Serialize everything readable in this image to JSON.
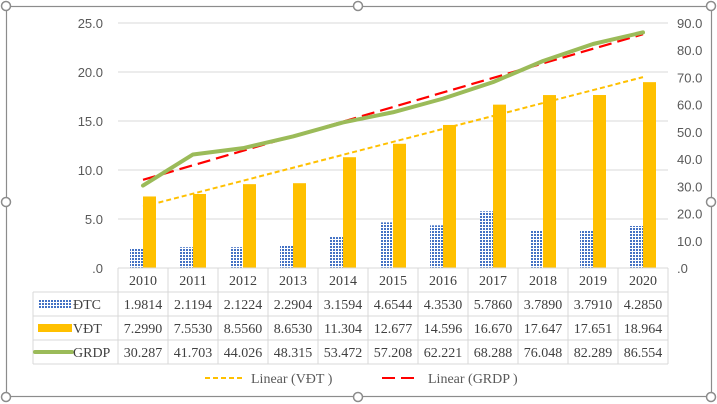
{
  "chart_data": {
    "type": "bar",
    "title": "",
    "categories": [
      "2010",
      "2011",
      "2012",
      "2013",
      "2014",
      "2015",
      "2016",
      "2017",
      "2018",
      "2019",
      "2020"
    ],
    "series": [
      {
        "name": "ĐTC",
        "kind": "bar",
        "axis": "left",
        "color": "#4472C4",
        "pattern": "dotted",
        "values": [
          1.9814,
          2.1194,
          2.1224,
          2.2904,
          3.1594,
          4.6544,
          4.353,
          5.786,
          3.789,
          3.791,
          4.285
        ],
        "labels": [
          "1.9814",
          "2.1194",
          "2.1224",
          "2.2904",
          "3.1594",
          "4.6544",
          "4.3530",
          "5.7860",
          "3.7890",
          "3.7910",
          "4.2850"
        ]
      },
      {
        "name": "VĐT",
        "kind": "bar",
        "axis": "left",
        "color": "#FFC000",
        "values": [
          7.299,
          7.553,
          8.556,
          8.653,
          11.304,
          12.677,
          14.596,
          16.67,
          17.647,
          17.651,
          18.964
        ],
        "labels": [
          "7.2990",
          "7.5530",
          "8.5560",
          "8.6530",
          "11.304",
          "12.677",
          "14.596",
          "16.670",
          "17.647",
          "17.651",
          "18.964"
        ]
      },
      {
        "name": "GRDP",
        "kind": "line",
        "axis": "right",
        "color": "#9BBB59",
        "values": [
          30.287,
          41.703,
          44.026,
          48.315,
          53.472,
          57.208,
          62.221,
          68.288,
          76.048,
          82.289,
          86.554
        ],
        "labels": [
          "30.287",
          "41.703",
          "44.026",
          "48.315",
          "53.472",
          "57.208",
          "62.221",
          "68.288",
          "76.048",
          "82.289",
          "86.554"
        ]
      }
    ],
    "trendlines": [
      {
        "name": "Linear (VĐT )",
        "of": "VĐT",
        "axis": "left",
        "color": "#FFC000",
        "style": "dashed"
      },
      {
        "name": "Linear (GRDP )",
        "of": "GRDP",
        "axis": "right",
        "color": "#FF0000",
        "style": "long-dash"
      }
    ],
    "left_axis": {
      "ylim": [
        0,
        25
      ],
      "ticks": [
        0,
        5,
        10,
        15,
        20,
        25
      ],
      "tick_labels": [
        ".0",
        "5.0",
        "10.0",
        "15.0",
        "20.0",
        "25.0"
      ]
    },
    "right_axis": {
      "ylim": [
        0,
        90
      ],
      "ticks": [
        0,
        10,
        20,
        30,
        40,
        50,
        60,
        70,
        80,
        90
      ],
      "tick_labels": [
        ".0",
        "10.0",
        "20.0",
        "30.0",
        "40.0",
        "50.0",
        "60.0",
        "70.0",
        "80.0",
        "90.0"
      ]
    },
    "xlabel": "",
    "ylabel": "",
    "grid": true,
    "data_table": true,
    "legend": "bottom"
  }
}
